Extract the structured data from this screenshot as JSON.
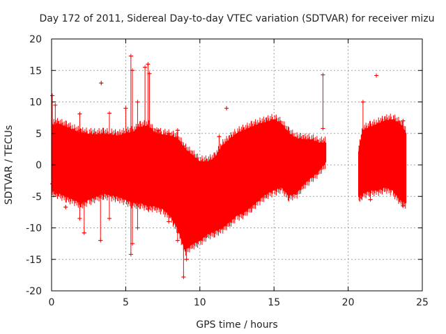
{
  "chart_data": {
    "type": "scatter",
    "title": "Day 172 of 2011, Sidereal Day-to-day VTEC variation (SDTVAR) for receiver mizu",
    "xlabel": "GPS time / hours",
    "ylabel": "SDTVAR / TECUs",
    "xlim": [
      0,
      25
    ],
    "ylim": [
      -20,
      20
    ],
    "xticks": [
      0,
      5,
      10,
      15,
      20,
      25
    ],
    "yticks": [
      -20,
      -15,
      -10,
      -5,
      0,
      5,
      10,
      15,
      20
    ],
    "xtick_labels": [
      "0",
      "5",
      "10",
      "15",
      "20",
      "25"
    ],
    "ytick_labels": [
      "-20",
      "-15",
      "-10",
      "-5",
      "0",
      "5",
      "10",
      "15",
      "20"
    ],
    "grid": true,
    "color": "#ff0000",
    "series": [
      {
        "name": "SDTVAR",
        "marker": "plus",
        "error_bars": true,
        "envelope": {
          "x": [
            0.0,
            0.5,
            1.0,
            1.5,
            2.0,
            2.5,
            3.0,
            3.5,
            4.0,
            4.5,
            5.0,
            5.5,
            6.0,
            6.5,
            7.0,
            7.5,
            8.0,
            8.5,
            9.0,
            9.5,
            10.0,
            10.5,
            11.0,
            11.5,
            12.0,
            12.5,
            13.0,
            13.5,
            14.0,
            14.5,
            15.0,
            15.5,
            16.0,
            16.5,
            17.0,
            17.5,
            18.0,
            18.5
          ],
          "upper": [
            6.2,
            6.5,
            6.0,
            5.5,
            5.0,
            4.9,
            4.8,
            4.9,
            4.8,
            4.6,
            5.0,
            5.2,
            6.0,
            6.2,
            5.0,
            4.8,
            4.6,
            4.2,
            2.5,
            1.5,
            0.5,
            0.5,
            1.0,
            3.0,
            4.0,
            5.0,
            5.5,
            6.0,
            6.5,
            6.8,
            7.2,
            6.5,
            5.0,
            4.2,
            4.0,
            4.0,
            3.5,
            3.5
          ],
          "lower": [
            -4.0,
            -4.5,
            -5.0,
            -5.5,
            -6.0,
            -5.5,
            -5.0,
            -4.5,
            -4.8,
            -5.0,
            -5.5,
            -6.0,
            -6.0,
            -6.5,
            -6.5,
            -7.0,
            -8.0,
            -10.0,
            -13.5,
            -12.5,
            -12.0,
            -11.0,
            -10.5,
            -10.0,
            -9.0,
            -8.0,
            -7.5,
            -6.5,
            -5.5,
            -4.5,
            -4.0,
            -3.5,
            -4.8,
            -4.5,
            -3.0,
            -2.0,
            -1.0,
            0.5
          ]
        },
        "envelope2": {
          "x": [
            20.7,
            21.0,
            21.5,
            22.0,
            22.5,
            23.0,
            23.5,
            23.9
          ],
          "upper": [
            2.0,
            5.5,
            6.0,
            6.5,
            7.0,
            7.2,
            6.5,
            5.0
          ],
          "lower": [
            -5.0,
            -4.5,
            -4.0,
            -4.0,
            -3.5,
            -4.0,
            -5.5,
            -6.0
          ]
        },
        "spikes": [
          {
            "x": 0.05,
            "low": -3.0,
            "high": 11.0
          },
          {
            "x": 0.25,
            "low": -4.5,
            "high": 9.5
          },
          {
            "x": 0.95,
            "low": -6.7,
            "high": -6.7
          },
          {
            "x": 1.9,
            "low": -8.5,
            "high": 8.1
          },
          {
            "x": 2.2,
            "low": -10.8,
            "high": 5.0
          },
          {
            "x": 3.3,
            "low": -12.0,
            "high": 4.0
          },
          {
            "x": 3.35,
            "low": 13.0,
            "high": 13.0
          },
          {
            "x": 3.9,
            "low": -8.5,
            "high": 8.2
          },
          {
            "x": 5.0,
            "low": -4.0,
            "high": 9.0
          },
          {
            "x": 5.35,
            "low": -14.2,
            "high": 17.3
          },
          {
            "x": 5.45,
            "low": -12.5,
            "high": 15.0
          },
          {
            "x": 5.8,
            "low": -10.0,
            "high": 10.0
          },
          {
            "x": 6.3,
            "low": -6.0,
            "high": 15.5
          },
          {
            "x": 6.5,
            "low": -7.0,
            "high": 16.0
          },
          {
            "x": 6.6,
            "low": -6.0,
            "high": 14.5
          },
          {
            "x": 7.2,
            "low": -6.5,
            "high": 5.5
          },
          {
            "x": 7.9,
            "low": -9.0,
            "high": 5.0
          },
          {
            "x": 8.5,
            "low": -12.0,
            "high": 5.5
          },
          {
            "x": 8.9,
            "low": -17.8,
            "high": 3.0
          },
          {
            "x": 9.1,
            "low": -15.0,
            "high": 2.0
          },
          {
            "x": 11.8,
            "low": 9.0,
            "high": 9.0
          },
          {
            "x": 11.3,
            "low": -9.0,
            "high": 4.5
          },
          {
            "x": 18.3,
            "low": 5.8,
            "high": 14.3
          },
          {
            "x": 21.0,
            "low": -3.0,
            "high": 10.0
          },
          {
            "x": 21.9,
            "low": 14.2,
            "high": 14.2
          },
          {
            "x": 21.5,
            "low": -5.5,
            "high": 6.0
          },
          {
            "x": 23.7,
            "low": -6.5,
            "high": 7.0
          }
        ]
      }
    ]
  }
}
